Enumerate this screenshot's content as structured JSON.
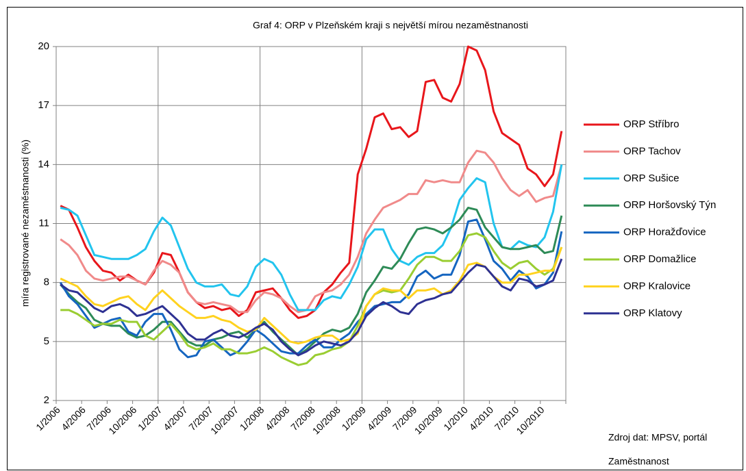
{
  "chart_data": {
    "type": "line",
    "title": "Graf 4: ORP v Plzeňském kraji s největší mírou nezaměstnanosti",
    "y_label": "míra registrované nezaměstnanosti (%)",
    "source": [
      "Zdroj dat: MPSV, portál",
      "Zaměstnanost"
    ],
    "categories": [
      "1/2006",
      null,
      null,
      "4/2006",
      null,
      null,
      "7/2006",
      null,
      null,
      "10/2006",
      null,
      null,
      "1/2007",
      null,
      null,
      "4/2007",
      null,
      null,
      "7/2007",
      null,
      null,
      "10/2007",
      null,
      null,
      "1/2008",
      null,
      null,
      "4/2008",
      null,
      null,
      "7/2008",
      null,
      null,
      "10/2008",
      null,
      null,
      "1/2009",
      null,
      null,
      "4/2009",
      null,
      null,
      "7/2009",
      null,
      null,
      "10/2009",
      null,
      null,
      "1/2010",
      null,
      null,
      "4/2010",
      null,
      null,
      "7/2010",
      null,
      null,
      "10/2010",
      null,
      null
    ],
    "ylim": [
      2,
      20
    ],
    "yticks": [
      2,
      5,
      8,
      11,
      14,
      17,
      20
    ],
    "grid": true,
    "legend": "right",
    "series": [
      {
        "name": "ORP Stříbro",
        "color": "#e8161b",
        "values": [
          11.9,
          11.7,
          10.8,
          9.8,
          9.1,
          8.6,
          8.5,
          8.1,
          8.4,
          8.1,
          7.9,
          8.5,
          9.5,
          9.4,
          8.5,
          7.5,
          7.0,
          6.7,
          6.8,
          6.6,
          6.7,
          6.3,
          6.6,
          7.5,
          7.6,
          7.7,
          7.2,
          6.6,
          6.2,
          6.3,
          6.6,
          7.5,
          7.9,
          8.5,
          9.0,
          13.5,
          14.8,
          16.4,
          16.6,
          15.8,
          15.9,
          15.4,
          15.7,
          18.2,
          18.3,
          17.4,
          17.2,
          18.1,
          20.0,
          19.8,
          18.8,
          16.7,
          15.6,
          15.3,
          15.0,
          13.8,
          13.5,
          12.9,
          13.5,
          15.7
        ]
      },
      {
        "name": "ORP Tachov",
        "color": "#f08a8a",
        "values": [
          10.2,
          9.9,
          9.4,
          8.6,
          8.2,
          8.1,
          8.2,
          8.3,
          8.3,
          8.1,
          7.9,
          8.6,
          9.1,
          8.9,
          8.5,
          7.5,
          7.0,
          6.9,
          7.0,
          6.9,
          6.8,
          6.5,
          6.5,
          7.1,
          7.5,
          7.4,
          7.2,
          6.8,
          6.5,
          6.6,
          7.3,
          7.5,
          7.6,
          7.9,
          8.4,
          9.3,
          10.5,
          11.2,
          11.8,
          12.0,
          12.2,
          12.5,
          12.5,
          13.2,
          13.1,
          13.2,
          13.1,
          13.1,
          14.1,
          14.7,
          14.6,
          14.1,
          13.3,
          12.7,
          12.4,
          12.7,
          12.1,
          12.3,
          12.4,
          14.0
        ]
      },
      {
        "name": "ORP Sušice",
        "color": "#22c4ee",
        "values": [
          11.8,
          11.7,
          11.4,
          10.4,
          9.4,
          9.3,
          9.2,
          9.2,
          9.2,
          9.4,
          9.7,
          10.6,
          11.3,
          10.9,
          9.8,
          8.7,
          8.0,
          7.8,
          7.8,
          7.9,
          7.4,
          7.3,
          7.8,
          8.8,
          9.2,
          9.0,
          8.4,
          7.4,
          6.6,
          6.6,
          6.6,
          7.1,
          7.3,
          7.2,
          7.9,
          8.8,
          10.2,
          10.7,
          10.7,
          9.7,
          9.1,
          8.9,
          9.3,
          9.5,
          9.5,
          9.9,
          10.8,
          12.2,
          12.8,
          13.3,
          13.1,
          11.0,
          9.8,
          9.7,
          10.1,
          9.9,
          9.8,
          10.3,
          11.6,
          14.0
        ]
      },
      {
        "name": "ORP Horšovský Týn",
        "color": "#2e8b57",
        "values": [
          7.9,
          7.4,
          7.0,
          6.7,
          6.1,
          5.9,
          5.8,
          5.8,
          5.4,
          5.2,
          5.3,
          5.6,
          6.0,
          6.0,
          5.5,
          5.0,
          4.8,
          4.8,
          5.1,
          5.2,
          5.4,
          5.5,
          5.2,
          5.6,
          6.0,
          5.5,
          5.1,
          4.7,
          4.3,
          4.6,
          5.0,
          5.4,
          5.6,
          5.5,
          5.7,
          6.4,
          7.5,
          8.1,
          8.8,
          8.7,
          9.2,
          10.0,
          10.7,
          10.8,
          10.7,
          10.5,
          10.8,
          11.2,
          11.8,
          11.7,
          10.8,
          10.3,
          9.8,
          9.7,
          9.7,
          9.8,
          9.9,
          9.5,
          9.6,
          11.4
        ]
      },
      {
        "name": "ORP Horažďovice",
        "color": "#1565c0",
        "values": [
          8.0,
          7.3,
          6.9,
          6.3,
          5.7,
          5.9,
          6.1,
          6.2,
          5.5,
          5.3,
          6.0,
          6.4,
          6.4,
          5.6,
          4.6,
          4.2,
          4.3,
          5.0,
          5.1,
          4.7,
          4.3,
          4.5,
          5.0,
          5.6,
          5.3,
          4.9,
          4.5,
          4.4,
          4.4,
          4.8,
          5.1,
          4.7,
          4.7,
          5.1,
          5.4,
          6.0,
          6.4,
          6.8,
          6.9,
          7.0,
          7.0,
          7.4,
          8.3,
          8.6,
          8.2,
          8.4,
          8.4,
          9.4,
          11.1,
          11.2,
          10.2,
          9.1,
          8.7,
          8.1,
          8.6,
          8.3,
          7.7,
          7.9,
          8.5,
          10.6
        ]
      },
      {
        "name": "ORP Domažlice",
        "color": "#9acd32",
        "values": [
          6.6,
          6.6,
          6.4,
          6.1,
          5.8,
          5.9,
          5.9,
          6.1,
          6.0,
          6.0,
          5.3,
          5.1,
          5.5,
          5.9,
          5.4,
          4.8,
          4.6,
          4.7,
          4.9,
          4.6,
          4.6,
          4.4,
          4.4,
          4.5,
          4.7,
          4.5,
          4.2,
          4.0,
          3.8,
          3.9,
          4.3,
          4.4,
          4.6,
          4.7,
          5.0,
          5.8,
          6.8,
          7.4,
          7.6,
          7.5,
          7.6,
          8.2,
          8.9,
          9.3,
          9.3,
          9.1,
          9.1,
          9.6,
          10.4,
          10.5,
          10.3,
          9.6,
          9.0,
          8.7,
          9.0,
          9.1,
          8.7,
          8.4,
          8.7,
          9.8
        ]
      },
      {
        "name": "ORP Kralovice",
        "color": "#ffd21f",
        "values": [
          8.2,
          8.0,
          7.8,
          7.3,
          6.9,
          6.8,
          7.0,
          7.2,
          7.3,
          6.9,
          6.6,
          7.2,
          7.6,
          7.2,
          6.8,
          6.5,
          6.2,
          6.2,
          6.3,
          6.1,
          6.0,
          5.7,
          5.5,
          5.6,
          6.2,
          5.8,
          5.4,
          5.0,
          4.9,
          5.0,
          5.2,
          5.3,
          5.3,
          5.0,
          5.1,
          5.4,
          6.8,
          7.4,
          7.7,
          7.6,
          7.6,
          7.2,
          7.6,
          7.6,
          7.7,
          7.4,
          7.6,
          8.1,
          8.9,
          9.0,
          8.8,
          8.3,
          8.0,
          8.0,
          8.4,
          8.4,
          8.5,
          8.6,
          8.6,
          9.8
        ]
      },
      {
        "name": "ORP Klatovy",
        "color": "#2e3192",
        "values": [
          7.9,
          7.6,
          7.5,
          7.1,
          6.7,
          6.5,
          6.8,
          6.9,
          6.7,
          6.3,
          6.4,
          6.6,
          6.8,
          6.4,
          6.0,
          5.4,
          5.1,
          5.1,
          5.4,
          5.6,
          5.3,
          5.2,
          5.4,
          5.7,
          5.9,
          5.6,
          5.0,
          4.6,
          4.3,
          4.5,
          4.8,
          5.0,
          4.9,
          4.8,
          5.0,
          5.5,
          6.3,
          6.7,
          7.0,
          6.8,
          6.5,
          6.4,
          6.9,
          7.1,
          7.2,
          7.4,
          7.5,
          8.0,
          8.5,
          8.9,
          8.8,
          8.3,
          7.8,
          7.6,
          8.2,
          8.1,
          7.8,
          7.9,
          8.1,
          9.2
        ]
      }
    ]
  }
}
